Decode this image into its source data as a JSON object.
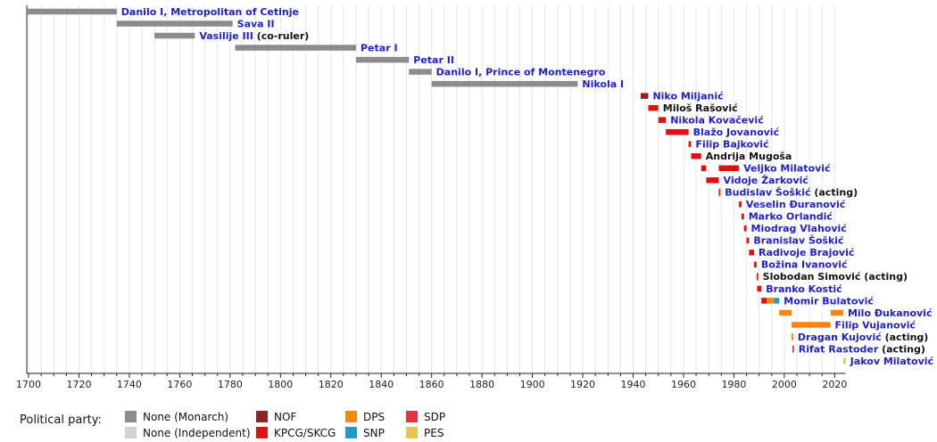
{
  "chart_data": {
    "type": "timeline",
    "title": "",
    "xlabel": "",
    "legend_title": "Political party:",
    "axis": {
      "min_year": 1699.3,
      "max_year": 2024.3,
      "tick_start": 1700,
      "tick_end": 2020,
      "tick_step": 20,
      "minor_step": 5,
      "tick_labels": [
        "1700",
        "1720",
        "1740",
        "1760",
        "1780",
        "1800",
        "1820",
        "1840",
        "1860",
        "1880",
        "1900",
        "1920",
        "1940",
        "1960",
        "1980",
        "2000",
        "2020"
      ]
    },
    "colors": {
      "link_text": "#2020c8",
      "plain_text": "#111111",
      "axis": "#222222",
      "gridline": "#e4e4e4"
    },
    "parties": [
      {
        "id": "monarch",
        "label": "None (Monarch)",
        "color": "#8c8c8c"
      },
      {
        "id": "independent",
        "label": "None (Independent)",
        "color": "#d3d3d3"
      },
      {
        "id": "nof",
        "label": "NOF",
        "color": "#8e2226"
      },
      {
        "id": "kpcg",
        "label": "KPCG/SKCG",
        "color": "#dd1111"
      },
      {
        "id": "dps",
        "label": "DPS",
        "color": "#f5870e"
      },
      {
        "id": "snp",
        "label": "SNP",
        "color": "#219acd"
      },
      {
        "id": "sdp",
        "label": "SDP",
        "color": "#e73141"
      },
      {
        "id": "pes",
        "label": "PES",
        "color": "#eac355"
      }
    ],
    "people": [
      {
        "name": "Danilo I, Metropolitan of Cetinje",
        "suffix": "",
        "link": true,
        "bars": [
          {
            "start": 1697,
            "end": 1735,
            "party": "monarch"
          }
        ]
      },
      {
        "name": "Sava II",
        "suffix": "",
        "link": true,
        "bars": [
          {
            "start": 1735,
            "end": 1781,
            "party": "monarch"
          }
        ]
      },
      {
        "name": "Vasilije III",
        "suffix": " (co-ruler)",
        "link": true,
        "bars": [
          {
            "start": 1750,
            "end": 1766,
            "party": "monarch"
          }
        ]
      },
      {
        "name": "Petar I",
        "suffix": "",
        "link": true,
        "bars": [
          {
            "start": 1782,
            "end": 1830,
            "party": "monarch"
          }
        ]
      },
      {
        "name": "Petar II",
        "suffix": "",
        "link": true,
        "bars": [
          {
            "start": 1830,
            "end": 1851,
            "party": "monarch"
          }
        ]
      },
      {
        "name": "Danilo I, Prince of Montenegro",
        "suffix": "",
        "link": true,
        "bars": [
          {
            "start": 1851,
            "end": 1860,
            "party": "monarch"
          }
        ]
      },
      {
        "name": "Nikola I",
        "suffix": "",
        "link": true,
        "bars": [
          {
            "start": 1860,
            "end": 1918,
            "party": "monarch"
          }
        ]
      },
      {
        "name": "Niko Miljanić",
        "suffix": "",
        "link": true,
        "bars": [
          {
            "start": 1943,
            "end": 1946,
            "party": "nof"
          }
        ]
      },
      {
        "name": "Miloš Rašović",
        "suffix": "",
        "link": false,
        "bars": [
          {
            "start": 1946,
            "end": 1950,
            "party": "kpcg"
          }
        ]
      },
      {
        "name": "Nikola Kovačević",
        "suffix": "",
        "link": true,
        "bars": [
          {
            "start": 1950,
            "end": 1953,
            "party": "kpcg"
          }
        ]
      },
      {
        "name": "Blažo Jovanović",
        "suffix": "",
        "link": true,
        "bars": [
          {
            "start": 1953,
            "end": 1962,
            "party": "kpcg"
          }
        ]
      },
      {
        "name": "Filip Bajković",
        "suffix": "",
        "link": true,
        "bars": [
          {
            "start": 1962,
            "end": 1963,
            "party": "kpcg"
          }
        ]
      },
      {
        "name": "Andrija Mugoša",
        "suffix": "",
        "link": false,
        "bars": [
          {
            "start": 1963,
            "end": 1967,
            "party": "kpcg"
          }
        ]
      },
      {
        "name": "Veljko Milatović",
        "suffix": "",
        "link": true,
        "bars": [
          {
            "start": 1967,
            "end": 1969,
            "party": "kpcg"
          },
          {
            "start": 1974,
            "end": 1982,
            "party": "kpcg"
          }
        ]
      },
      {
        "name": "Vidoje Žarković",
        "suffix": "",
        "link": true,
        "bars": [
          {
            "start": 1969,
            "end": 1974,
            "party": "kpcg"
          }
        ]
      },
      {
        "name": "Budislav Šoškić",
        "suffix": " (acting)",
        "link": true,
        "bars": [
          {
            "start": 1974,
            "end": 1974.3,
            "party": "kpcg",
            "tick": true
          }
        ]
      },
      {
        "name": "Veselin Đuranović",
        "suffix": "",
        "link": true,
        "bars": [
          {
            "start": 1982,
            "end": 1983,
            "party": "kpcg"
          }
        ]
      },
      {
        "name": "Marko Orlandić",
        "suffix": "",
        "link": true,
        "bars": [
          {
            "start": 1983,
            "end": 1984,
            "party": "kpcg"
          }
        ]
      },
      {
        "name": "Miodrag Vlahović",
        "suffix": "",
        "link": true,
        "bars": [
          {
            "start": 1984,
            "end": 1985,
            "party": "kpcg"
          }
        ]
      },
      {
        "name": "Branislav Šoškić",
        "suffix": "",
        "link": true,
        "bars": [
          {
            "start": 1985,
            "end": 1986,
            "party": "kpcg"
          }
        ]
      },
      {
        "name": "Radivoje Brajović",
        "suffix": "",
        "link": true,
        "bars": [
          {
            "start": 1986,
            "end": 1988,
            "party": "kpcg"
          }
        ]
      },
      {
        "name": "Božina Ivanović",
        "suffix": "",
        "link": true,
        "bars": [
          {
            "start": 1988,
            "end": 1989,
            "party": "kpcg"
          }
        ]
      },
      {
        "name": "Slobodan Simović",
        "suffix": " (acting)",
        "link": false,
        "bars": [
          {
            "start": 1989,
            "end": 1989.3,
            "party": "kpcg",
            "tick": true
          }
        ]
      },
      {
        "name": "Branko Kostić",
        "suffix": "",
        "link": true,
        "bars": [
          {
            "start": 1989.2,
            "end": 1990.9,
            "party": "kpcg"
          }
        ]
      },
      {
        "name": "Momir Bulatović",
        "suffix": "",
        "link": true,
        "bars": [
          {
            "start": 1990.9,
            "end": 1993,
            "party": "kpcg"
          },
          {
            "start": 1993,
            "end": 1996,
            "party": "dps"
          },
          {
            "start": 1996,
            "end": 1998,
            "party": "snp"
          }
        ]
      },
      {
        "name": "Milo Đukanović",
        "suffix": "",
        "link": true,
        "bars": [
          {
            "start": 1998,
            "end": 2002.9,
            "party": "dps"
          },
          {
            "start": 2018.4,
            "end": 2023.4,
            "party": "dps"
          }
        ]
      },
      {
        "name": "Filip Vujanović",
        "suffix": "",
        "link": true,
        "bars": [
          {
            "start": 2002.9,
            "end": 2018.3,
            "party": "dps"
          }
        ]
      },
      {
        "name": "Dragan Kujović",
        "suffix": " (acting)",
        "link": true,
        "bars": [
          {
            "start": 2002.9,
            "end": 2003.2,
            "party": "dps",
            "tick": true
          }
        ]
      },
      {
        "name": "Rifat Rastoder",
        "suffix": " (acting)",
        "link": true,
        "bars": [
          {
            "start": 2003.2,
            "end": 2003.5,
            "party": "sdp",
            "tick": true
          }
        ]
      },
      {
        "name": "Jakov Milatović",
        "suffix": "",
        "link": true,
        "bars": [
          {
            "start": 2023.4,
            "end": 2024.3,
            "party": "pes"
          }
        ]
      }
    ],
    "legend_layout": {
      "columns": [
        [
          "monarch",
          "independent"
        ],
        [
          "nof",
          "kpcg"
        ],
        [
          "dps",
          "snp"
        ],
        [
          "sdp",
          "pes"
        ]
      ]
    }
  }
}
